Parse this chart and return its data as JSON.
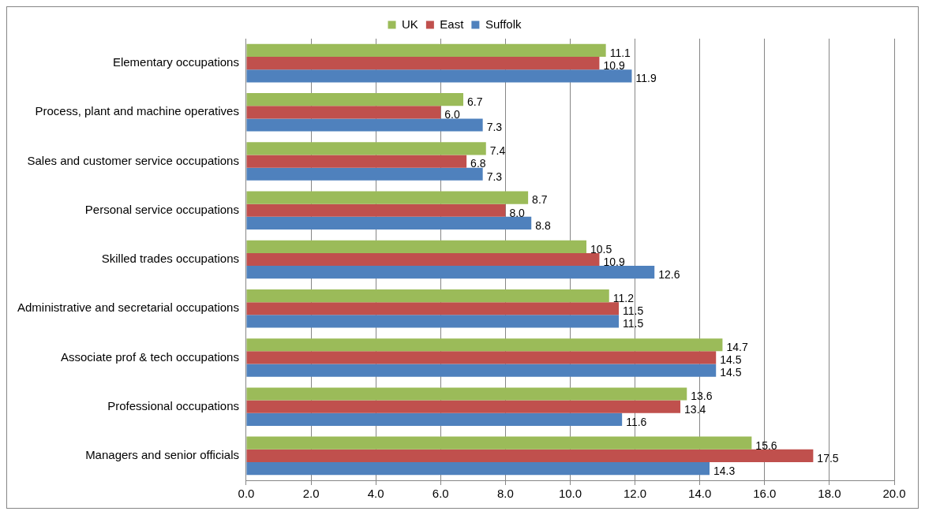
{
  "chart_data": {
    "type": "bar",
    "orientation": "horizontal",
    "categories": [
      "Elementary occupations",
      "Process, plant and machine operatives",
      "Sales and customer service occupations",
      "Personal service occupations",
      "Skilled trades occupations",
      "Administrative and secretarial occupations",
      "Associate prof & tech occupations",
      "Professional occupations",
      "Managers and senior officials"
    ],
    "series": [
      {
        "name": "UK",
        "color": "#9bbb59",
        "values": [
          11.1,
          6.7,
          7.4,
          8.7,
          10.5,
          11.2,
          14.7,
          13.6,
          15.6
        ],
        "value_labels": [
          "11.1",
          "6.7",
          "7.4",
          "8.7",
          "10.5",
          "11.2",
          "14.7",
          "13.6",
          "15.6"
        ]
      },
      {
        "name": "East",
        "color": "#c0504d",
        "values": [
          10.9,
          6.0,
          6.8,
          8.0,
          10.9,
          11.5,
          14.5,
          13.4,
          17.5
        ],
        "value_labels": [
          "10.9",
          "6.0",
          "6.8",
          "8.0",
          "10.9",
          "11.5",
          "14.5",
          "13.4",
          "17.5"
        ]
      },
      {
        "name": "Suffolk",
        "color": "#4f81bd",
        "values": [
          11.9,
          7.3,
          7.3,
          8.8,
          12.6,
          11.5,
          14.5,
          11.6,
          14.3
        ],
        "value_labels": [
          "11.9",
          "7.3",
          "7.3",
          "8.8",
          "12.6",
          "11.5",
          "14.5",
          "11.6",
          "14.3"
        ]
      }
    ],
    "xlim": [
      0,
      20
    ],
    "xticks": [
      {
        "value": 0,
        "label": "0.0"
      },
      {
        "value": 2,
        "label": "2.0"
      },
      {
        "value": 4,
        "label": "4.0"
      },
      {
        "value": 6,
        "label": "6.0"
      },
      {
        "value": 8,
        "label": "8.0"
      },
      {
        "value": 10,
        "label": "10.0"
      },
      {
        "value": 12,
        "label": "12.0"
      },
      {
        "value": 14,
        "label": "14.0"
      },
      {
        "value": 16,
        "label": "16.0"
      },
      {
        "value": 18,
        "label": "18.0"
      },
      {
        "value": 20,
        "label": "20.0"
      }
    ],
    "grid": "x",
    "legend": "top"
  }
}
